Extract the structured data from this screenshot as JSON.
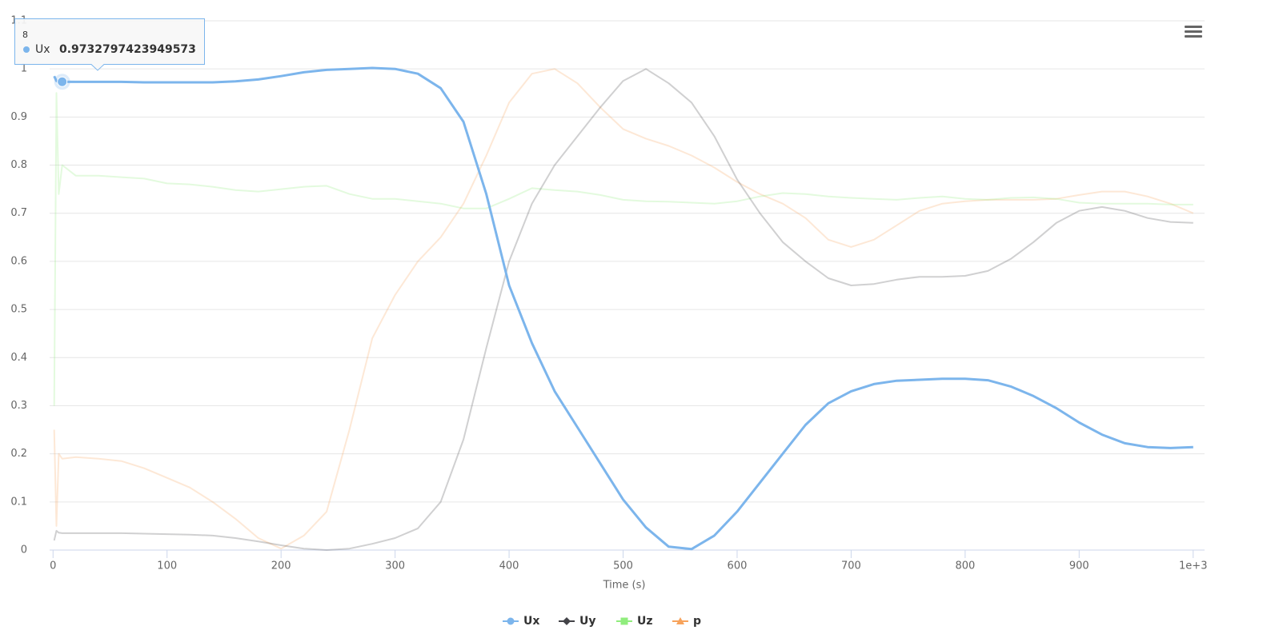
{
  "chart_data": {
    "type": "line",
    "x_label": "Time (s)",
    "x": [
      1,
      3,
      5,
      8,
      20,
      40,
      60,
      80,
      100,
      120,
      140,
      160,
      180,
      200,
      220,
      240,
      260,
      280,
      300,
      320,
      340,
      360,
      380,
      400,
      420,
      440,
      460,
      480,
      500,
      520,
      540,
      560,
      580,
      600,
      620,
      640,
      660,
      680,
      700,
      720,
      740,
      760,
      780,
      800,
      820,
      840,
      860,
      880,
      900,
      920,
      940,
      960,
      980,
      1000
    ],
    "xlim": [
      -3,
      1010
    ],
    "xticks": [
      0,
      100,
      200,
      300,
      400,
      500,
      600,
      700,
      800,
      900,
      {
        "value": 1000,
        "label": "1e+3"
      }
    ],
    "ylim": [
      0,
      1.1
    ],
    "yticks": [
      0,
      0.1,
      0.2,
      0.3,
      0.4,
      0.5,
      0.6,
      0.7,
      0.8,
      0.9,
      1,
      1.1
    ],
    "grid": true,
    "series": [
      {
        "name": "Ux",
        "color": "#7cb5ec",
        "marker": "circle",
        "opacity": 1,
        "values": [
          0.985,
          0.975,
          0.973,
          0.9732797423949573,
          0.973,
          0.973,
          0.973,
          0.972,
          0.972,
          0.972,
          0.972,
          0.974,
          0.978,
          0.985,
          0.993,
          0.998,
          1.0,
          1.002,
          1.0,
          0.99,
          0.96,
          0.89,
          0.74,
          0.55,
          0.43,
          0.33,
          0.255,
          0.18,
          0.105,
          0.047,
          0.007,
          0.002,
          0.03,
          0.08,
          0.14,
          0.2,
          0.26,
          0.305,
          0.33,
          0.345,
          0.352,
          0.354,
          0.356,
          0.356,
          0.353,
          0.34,
          0.32,
          0.295,
          0.265,
          0.24,
          0.222,
          0.214,
          0.212,
          0.214
        ]
      },
      {
        "name": "Uy",
        "color": "#434348",
        "marker": "diamond",
        "opacity": 0.25,
        "values": [
          0.02,
          0.04,
          0.036,
          0.035,
          0.035,
          0.035,
          0.035,
          0.034,
          0.033,
          0.032,
          0.03,
          0.025,
          0.018,
          0.01,
          0.003,
          0.0,
          0.003,
          0.013,
          0.025,
          0.045,
          0.1,
          0.23,
          0.42,
          0.6,
          0.72,
          0.8,
          0.86,
          0.92,
          0.975,
          1.0,
          0.97,
          0.93,
          0.86,
          0.77,
          0.7,
          0.64,
          0.6,
          0.565,
          0.55,
          0.553,
          0.562,
          0.568,
          0.568,
          0.57,
          0.58,
          0.605,
          0.64,
          0.68,
          0.705,
          0.713,
          0.705,
          0.69,
          0.682,
          0.68
        ]
      },
      {
        "name": "Uz",
        "color": "#90ed7d",
        "marker": "square",
        "opacity": 0.25,
        "values": [
          0.3,
          0.95,
          0.74,
          0.8,
          0.778,
          0.778,
          0.775,
          0.772,
          0.762,
          0.76,
          0.755,
          0.748,
          0.745,
          0.75,
          0.755,
          0.757,
          0.74,
          0.73,
          0.73,
          0.725,
          0.72,
          0.71,
          0.71,
          0.73,
          0.752,
          0.748,
          0.745,
          0.738,
          0.728,
          0.725,
          0.724,
          0.722,
          0.72,
          0.725,
          0.735,
          0.742,
          0.74,
          0.735,
          0.732,
          0.73,
          0.728,
          0.732,
          0.735,
          0.73,
          0.728,
          0.732,
          0.733,
          0.73,
          0.722,
          0.72,
          0.72,
          0.72,
          0.718,
          0.718
        ]
      },
      {
        "name": "p",
        "color": "#f7a35c",
        "marker": "triangle",
        "opacity": 0.25,
        "values": [
          0.25,
          0.05,
          0.2,
          0.19,
          0.193,
          0.19,
          0.185,
          0.17,
          0.15,
          0.13,
          0.1,
          0.065,
          0.025,
          0.003,
          0.03,
          0.08,
          0.25,
          0.44,
          0.53,
          0.6,
          0.65,
          0.72,
          0.82,
          0.93,
          0.99,
          1.0,
          0.97,
          0.92,
          0.875,
          0.855,
          0.84,
          0.82,
          0.795,
          0.765,
          0.74,
          0.72,
          0.69,
          0.645,
          0.63,
          0.645,
          0.675,
          0.705,
          0.72,
          0.725,
          0.728,
          0.728,
          0.728,
          0.73,
          0.738,
          0.745,
          0.745,
          0.735,
          0.72,
          0.7
        ]
      }
    ],
    "tooltip": {
      "series": 0,
      "index": 3
    }
  }
}
